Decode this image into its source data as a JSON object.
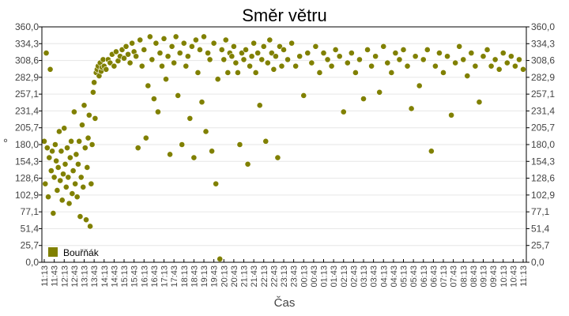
{
  "chart_data": {
    "type": "scatter",
    "title": "Směr větru",
    "xlabel": "Čas",
    "ylabel": "°",
    "ylim": [
      0,
      360
    ],
    "y_ticks": [
      "0,0",
      "25,7",
      "51,4",
      "77,1",
      "102,9",
      "128,6",
      "154,3",
      "180,0",
      "205,7",
      "231,4",
      "257,1",
      "282,9",
      "308,6",
      "334,3",
      "360,0"
    ],
    "x_ticks": [
      "11:13",
      "11:43",
      "12:13",
      "12:43",
      "13:13",
      "13:43",
      "14:13",
      "14:43",
      "15:13",
      "15:43",
      "16:13",
      "16:43",
      "17:13",
      "17:43",
      "18:13",
      "18:43",
      "19:13",
      "19:43",
      "20:13",
      "20:43",
      "21:13",
      "21:43",
      "22:13",
      "22:43",
      "23:13",
      "23:43",
      "00:13",
      "00:43",
      "01:13",
      "01:43",
      "02:13",
      "02:43",
      "03:13",
      "03:43",
      "04:13",
      "04:43",
      "05:13",
      "05:43",
      "06:13",
      "06:43",
      "07:13",
      "07:43",
      "08:13",
      "08:43",
      "09:13",
      "09:43",
      "10:13",
      "10:43",
      "11:13"
    ],
    "grid": true,
    "legend_position": "bottom-left-inside",
    "series": [
      {
        "name": "Bouřňák",
        "color": "#808000",
        "x_unit": "hours since 11:13",
        "points": [
          [
            0.0,
            185
          ],
          [
            0.05,
            120
          ],
          [
            0.1,
            320
          ],
          [
            0.15,
            175
          ],
          [
            0.2,
            100
          ],
          [
            0.25,
            160
          ],
          [
            0.3,
            295
          ],
          [
            0.35,
            140
          ],
          [
            0.4,
            170
          ],
          [
            0.45,
            75
          ],
          [
            0.5,
            130
          ],
          [
            0.55,
            180
          ],
          [
            0.6,
            155
          ],
          [
            0.65,
            110
          ],
          [
            0.7,
            145
          ],
          [
            0.75,
            200
          ],
          [
            0.8,
            125
          ],
          [
            0.85,
            170
          ],
          [
            0.9,
            95
          ],
          [
            0.95,
            135
          ],
          [
            1.0,
            205
          ],
          [
            1.05,
            150
          ],
          [
            1.1,
            115
          ],
          [
            1.15,
            175
          ],
          [
            1.2,
            130
          ],
          [
            1.25,
            90
          ],
          [
            1.3,
            160
          ],
          [
            1.35,
            185
          ],
          [
            1.4,
            105
          ],
          [
            1.45,
            140
          ],
          [
            1.5,
            230
          ],
          [
            1.55,
            120
          ],
          [
            1.6,
            165
          ],
          [
            1.65,
            100
          ],
          [
            1.7,
            150
          ],
          [
            1.75,
            185
          ],
          [
            1.8,
            70
          ],
          [
            1.85,
            130
          ],
          [
            1.9,
            210
          ],
          [
            1.95,
            115
          ],
          [
            2.0,
            240
          ],
          [
            2.05,
            175
          ],
          [
            2.1,
            65
          ],
          [
            2.15,
            145
          ],
          [
            2.2,
            190
          ],
          [
            2.25,
            225
          ],
          [
            2.3,
            55
          ],
          [
            2.35,
            120
          ],
          [
            2.4,
            180
          ],
          [
            2.45,
            260
          ],
          [
            2.5,
            275
          ],
          [
            2.55,
            220
          ],
          [
            2.6,
            290
          ],
          [
            2.65,
            295
          ],
          [
            2.7,
            300
          ],
          [
            2.75,
            285
          ],
          [
            2.8,
            305
          ],
          [
            2.85,
            292
          ],
          [
            2.9,
            298
          ],
          [
            2.95,
            310
          ],
          [
            3.0,
            300
          ],
          [
            3.1,
            295
          ],
          [
            3.2,
            310
          ],
          [
            3.3,
            305
          ],
          [
            3.4,
            318
          ],
          [
            3.5,
            300
          ],
          [
            3.6,
            322
          ],
          [
            3.7,
            308
          ],
          [
            3.8,
            315
          ],
          [
            3.9,
            325
          ],
          [
            4.0,
            312
          ],
          [
            4.1,
            330
          ],
          [
            4.2,
            318
          ],
          [
            4.3,
            305
          ],
          [
            4.4,
            335
          ],
          [
            4.5,
            322
          ],
          [
            4.6,
            315
          ],
          [
            4.7,
            175
          ],
          [
            4.8,
            340
          ],
          [
            4.9,
            300
          ],
          [
            5.0,
            325
          ],
          [
            5.1,
            190
          ],
          [
            5.2,
            270
          ],
          [
            5.3,
            345
          ],
          [
            5.4,
            310
          ],
          [
            5.5,
            250
          ],
          [
            5.6,
            335
          ],
          [
            5.7,
            230
          ],
          [
            5.8,
            320
          ],
          [
            5.9,
            300
          ],
          [
            6.0,
            342
          ],
          [
            6.1,
            280
          ],
          [
            6.2,
            315
          ],
          [
            6.3,
            165
          ],
          [
            6.4,
            330
          ],
          [
            6.5,
            305
          ],
          [
            6.6,
            345
          ],
          [
            6.7,
            255
          ],
          [
            6.8,
            320
          ],
          [
            6.9,
            180
          ],
          [
            7.0,
            335
          ],
          [
            7.1,
            300
          ],
          [
            7.2,
            315
          ],
          [
            7.3,
            220
          ],
          [
            7.4,
            330
          ],
          [
            7.5,
            160
          ],
          [
            7.6,
            340
          ],
          [
            7.7,
            290
          ],
          [
            7.8,
            325
          ],
          [
            7.9,
            245
          ],
          [
            8.0,
            345
          ],
          [
            8.1,
            200
          ],
          [
            8.2,
            320
          ],
          [
            8.3,
            310
          ],
          [
            8.4,
            170
          ],
          [
            8.5,
            335
          ],
          [
            8.6,
            120
          ],
          [
            8.7,
            280
          ],
          [
            8.8,
            5
          ],
          [
            8.9,
            325
          ],
          [
            9.0,
            310
          ],
          [
            9.1,
            340
          ],
          [
            9.2,
            290
          ],
          [
            9.3,
            320
          ],
          [
            9.4,
            315
          ],
          [
            9.5,
            330
          ],
          [
            9.6,
            305
          ],
          [
            9.7,
            290
          ],
          [
            9.8,
            180
          ],
          [
            9.9,
            320
          ],
          [
            10.0,
            310
          ],
          [
            10.1,
            325
          ],
          [
            10.2,
            150
          ],
          [
            10.3,
            300
          ],
          [
            10.4,
            315
          ],
          [
            10.5,
            335
          ],
          [
            10.6,
            290
          ],
          [
            10.7,
            320
          ],
          [
            10.8,
            240
          ],
          [
            10.9,
            310
          ],
          [
            11.0,
            330
          ],
          [
            11.1,
            185
          ],
          [
            11.2,
            305
          ],
          [
            11.3,
            340
          ],
          [
            11.4,
            320
          ],
          [
            11.5,
            295
          ],
          [
            11.6,
            315
          ],
          [
            11.7,
            160
          ],
          [
            11.8,
            330
          ],
          [
            11.9,
            300
          ],
          [
            12.0,
            325
          ],
          [
            12.2,
            310
          ],
          [
            12.4,
            335
          ],
          [
            12.6,
            300
          ],
          [
            12.8,
            315
          ],
          [
            13.0,
            255
          ],
          [
            13.2,
            320
          ],
          [
            13.4,
            305
          ],
          [
            13.6,
            330
          ],
          [
            13.8,
            290
          ],
          [
            14.0,
            320
          ],
          [
            14.2,
            310
          ],
          [
            14.4,
            300
          ],
          [
            14.6,
            325
          ],
          [
            14.8,
            315
          ],
          [
            15.0,
            230
          ],
          [
            15.2,
            305
          ],
          [
            15.4,
            320
          ],
          [
            15.6,
            290
          ],
          [
            15.8,
            310
          ],
          [
            16.0,
            250
          ],
          [
            16.2,
            325
          ],
          [
            16.4,
            300
          ],
          [
            16.6,
            315
          ],
          [
            16.8,
            260
          ],
          [
            17.0,
            330
          ],
          [
            17.2,
            305
          ],
          [
            17.4,
            290
          ],
          [
            17.6,
            320
          ],
          [
            17.8,
            310
          ],
          [
            18.0,
            325
          ],
          [
            18.2,
            300
          ],
          [
            18.4,
            235
          ],
          [
            18.6,
            315
          ],
          [
            18.8,
            270
          ],
          [
            19.0,
            310
          ],
          [
            19.2,
            325
          ],
          [
            19.4,
            170
          ],
          [
            19.6,
            300
          ],
          [
            19.8,
            320
          ],
          [
            20.0,
            290
          ],
          [
            20.2,
            315
          ],
          [
            20.4,
            225
          ],
          [
            20.6,
            305
          ],
          [
            20.8,
            330
          ],
          [
            21.0,
            310
          ],
          [
            21.2,
            285
          ],
          [
            21.4,
            320
          ],
          [
            21.6,
            300
          ],
          [
            21.8,
            245
          ],
          [
            22.0,
            315
          ],
          [
            22.2,
            325
          ],
          [
            22.4,
            300
          ],
          [
            22.6,
            310
          ],
          [
            22.8,
            295
          ],
          [
            23.0,
            320
          ],
          [
            23.2,
            305
          ],
          [
            23.4,
            315
          ],
          [
            23.6,
            300
          ],
          [
            23.8,
            310
          ],
          [
            24.0,
            295
          ]
        ]
      }
    ]
  }
}
